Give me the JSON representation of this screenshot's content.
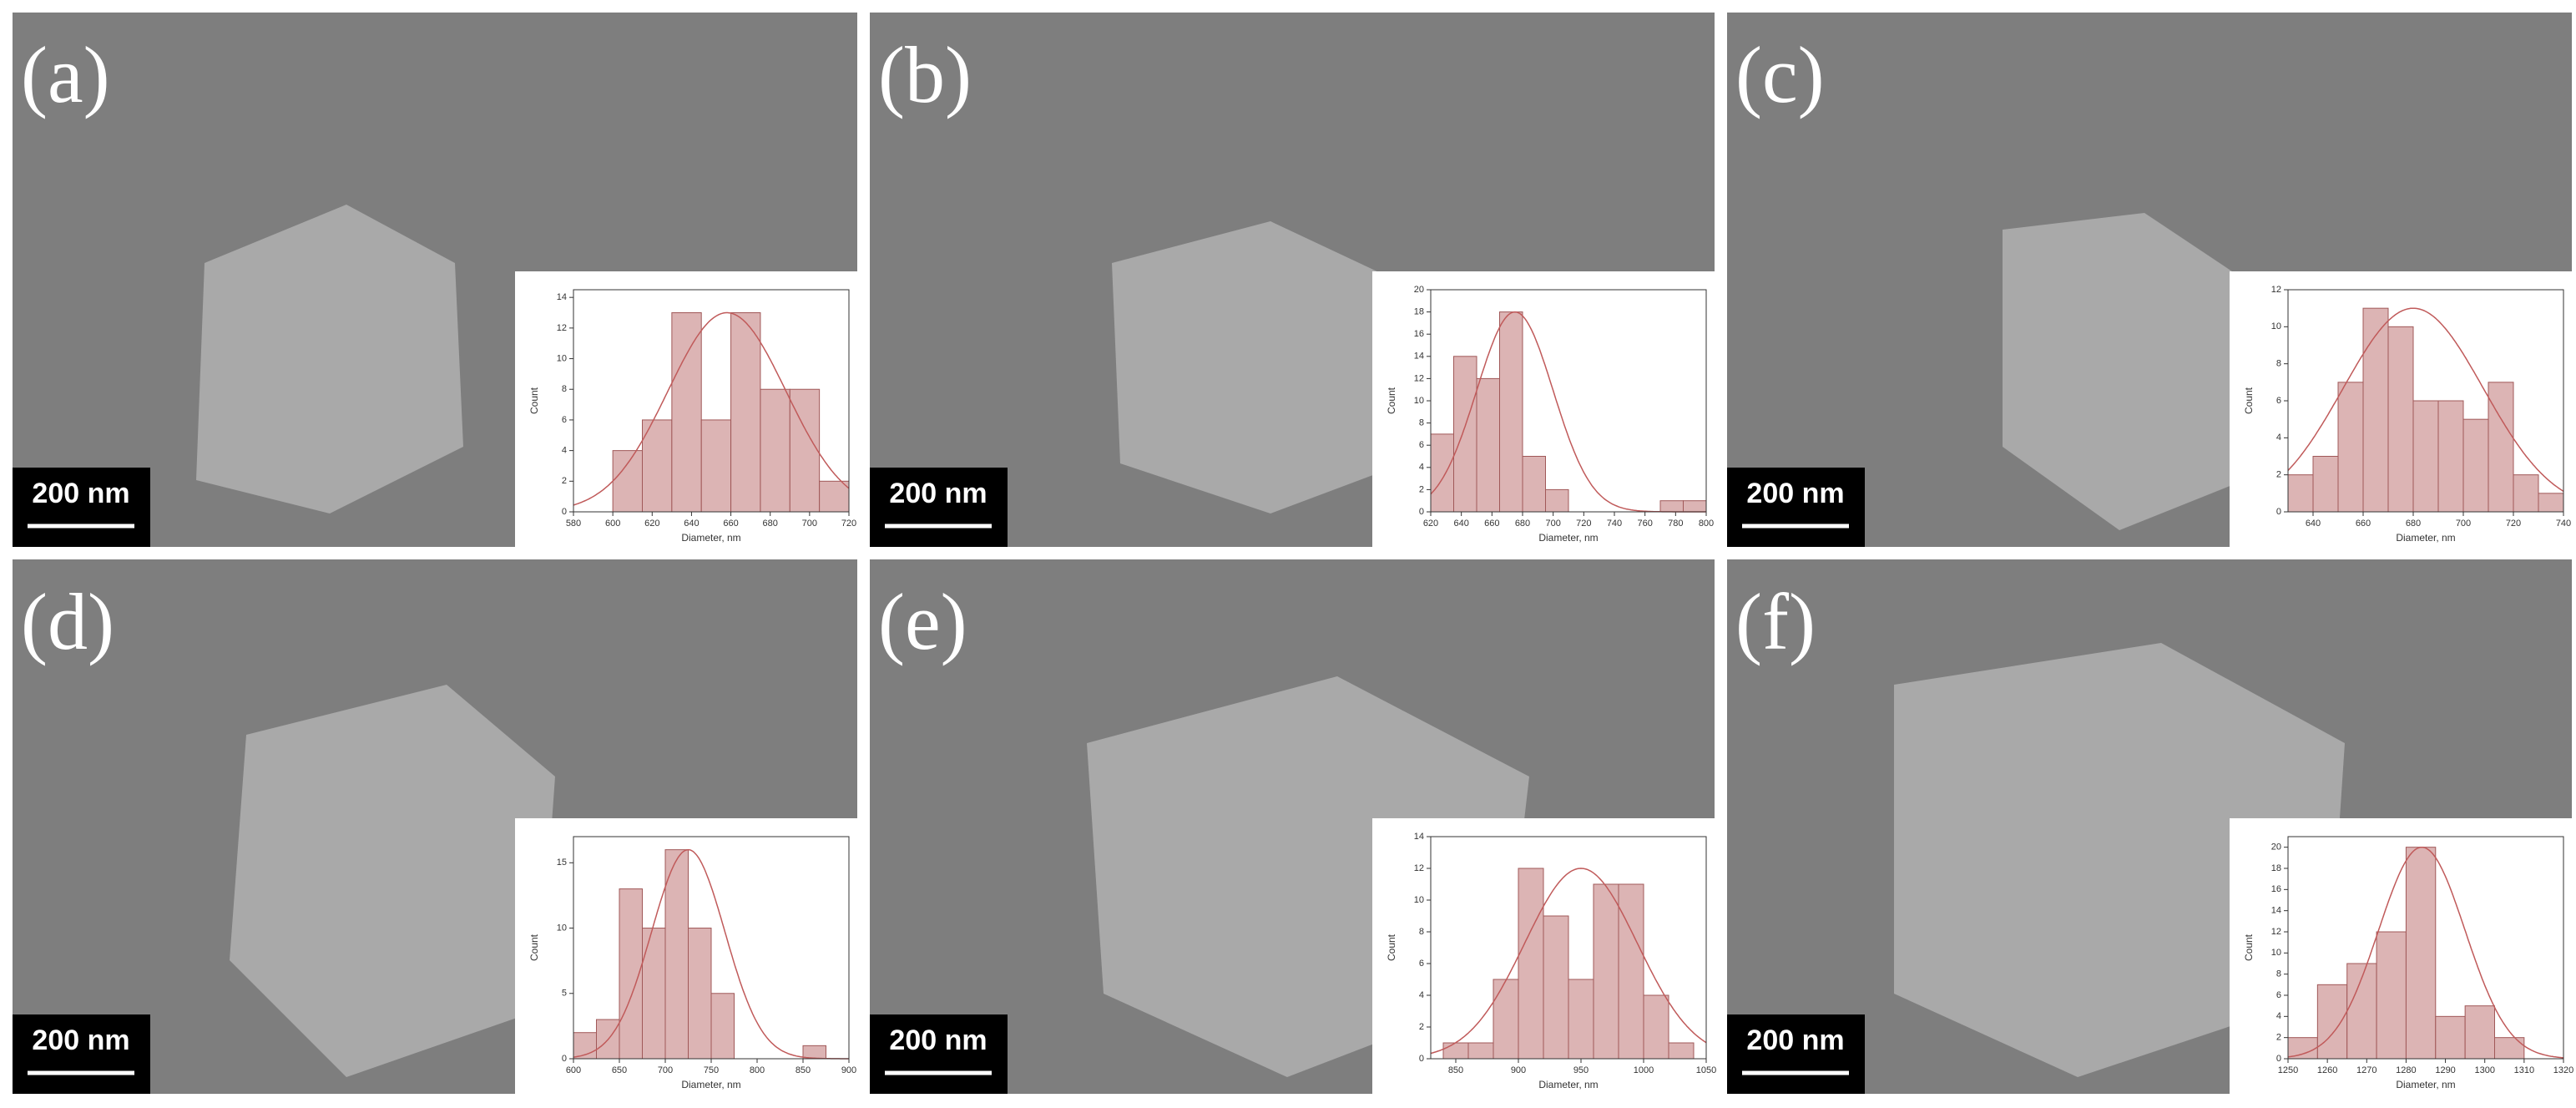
{
  "chart_data": [
    {
      "type": "histogram",
      "panel_label": "(a)",
      "scale_bar": "200 nm",
      "x_label": "Diameter, nm",
      "y_label": "Count",
      "bins": [
        600,
        615,
        630,
        645,
        660,
        675,
        690,
        705,
        720
      ],
      "values": [
        4,
        6,
        13,
        6,
        13,
        8,
        8,
        2
      ],
      "xlim": [
        580,
        720
      ],
      "xticks": [
        580,
        600,
        620,
        640,
        660,
        680,
        700,
        720
      ],
      "ylim": [
        0,
        14.5
      ],
      "yticks": [
        0,
        2,
        4,
        6,
        8,
        10,
        12,
        14
      ],
      "fit": {
        "mean": 658,
        "sd": 30,
        "peak": 13
      },
      "color": "#dcb4b4"
    },
    {
      "type": "histogram",
      "panel_label": "(b)",
      "scale_bar": "200 nm",
      "x_label": "Diameter, nm",
      "y_label": "Count",
      "bins": [
        620,
        635,
        650,
        665,
        680,
        695,
        710,
        725,
        740,
        755,
        770,
        785,
        800
      ],
      "values": [
        7,
        14,
        12,
        18,
        5,
        2,
        0,
        0,
        0,
        0,
        1,
        1
      ],
      "xlim": [
        620,
        800
      ],
      "xticks": [
        620,
        640,
        660,
        680,
        700,
        720,
        740,
        760,
        780,
        800
      ],
      "ylim": [
        0,
        20
      ],
      "yticks": [
        0,
        2,
        4,
        6,
        8,
        10,
        12,
        14,
        16,
        18,
        20
      ],
      "fit": {
        "mean": 675,
        "sd": 25,
        "peak": 18
      },
      "color": "#dcb4b4"
    },
    {
      "type": "histogram",
      "panel_label": "(c)",
      "scale_bar": "200 nm",
      "x_label": "Diameter, nm",
      "y_label": "Count",
      "bins": [
        630,
        640,
        650,
        660,
        670,
        680,
        690,
        700,
        710,
        720,
        730,
        740
      ],
      "values": [
        2,
        3,
        7,
        11,
        10,
        6,
        6,
        5,
        7,
        2,
        1
      ],
      "xlim": [
        630,
        740
      ],
      "xticks": [
        640,
        660,
        680,
        700,
        720,
        740
      ],
      "ylim": [
        0,
        12
      ],
      "yticks": [
        0,
        2,
        4,
        6,
        8,
        10,
        12
      ],
      "fit": {
        "mean": 680,
        "sd": 28,
        "peak": 11
      },
      "color": "#dcb4b4"
    },
    {
      "type": "histogram",
      "panel_label": "(d)",
      "scale_bar": "200 nm",
      "x_label": "Diameter, nm",
      "y_label": "Count",
      "bins": [
        600,
        625,
        650,
        675,
        700,
        725,
        750,
        775,
        800,
        825,
        850,
        875
      ],
      "values": [
        2,
        3,
        13,
        10,
        16,
        10,
        5,
        0,
        0,
        0,
        1
      ],
      "xlim": [
        600,
        900
      ],
      "xticks": [
        600,
        650,
        700,
        750,
        800,
        850,
        900
      ],
      "ylim": [
        0,
        17
      ],
      "yticks": [
        0,
        5,
        10,
        15
      ],
      "fit": {
        "mean": 725,
        "sd": 40,
        "peak": 16
      },
      "color": "#dcb4b4"
    },
    {
      "type": "histogram",
      "panel_label": "(e)",
      "scale_bar": "200 nm",
      "x_label": "Diameter, nm",
      "y_label": "Count",
      "bins": [
        840,
        860,
        880,
        900,
        920,
        940,
        960,
        980,
        1000,
        1020,
        1040
      ],
      "values": [
        1,
        1,
        5,
        12,
        9,
        5,
        11,
        11,
        4,
        1
      ],
      "xlim": [
        830,
        1050
      ],
      "xticks": [
        850,
        900,
        950,
        1000,
        1050
      ],
      "ylim": [
        0,
        14
      ],
      "yticks": [
        0,
        2,
        4,
        6,
        8,
        10,
        12,
        14
      ],
      "fit": {
        "mean": 950,
        "sd": 45,
        "peak": 12
      },
      "color": "#dcb4b4"
    },
    {
      "type": "histogram",
      "panel_label": "(f)",
      "scale_bar": "200 nm",
      "x_label": "Diameter, nm",
      "y_label": "Count",
      "bins": [
        1250,
        1257.5,
        1265,
        1272.5,
        1280,
        1287.5,
        1295,
        1302.5,
        1310
      ],
      "values": [
        2,
        7,
        9,
        12,
        20,
        4,
        5,
        2
      ],
      "xlim": [
        1250,
        1320
      ],
      "xticks": [
        1250,
        1260,
        1270,
        1280,
        1290,
        1300,
        1310,
        1320
      ],
      "ylim": [
        0,
        21
      ],
      "yticks": [
        0,
        2,
        4,
        6,
        8,
        10,
        12,
        14,
        16,
        18,
        20
      ],
      "fit": {
        "mean": 1284,
        "sd": 11,
        "peak": 20
      },
      "color": "#dcb4b4"
    }
  ]
}
